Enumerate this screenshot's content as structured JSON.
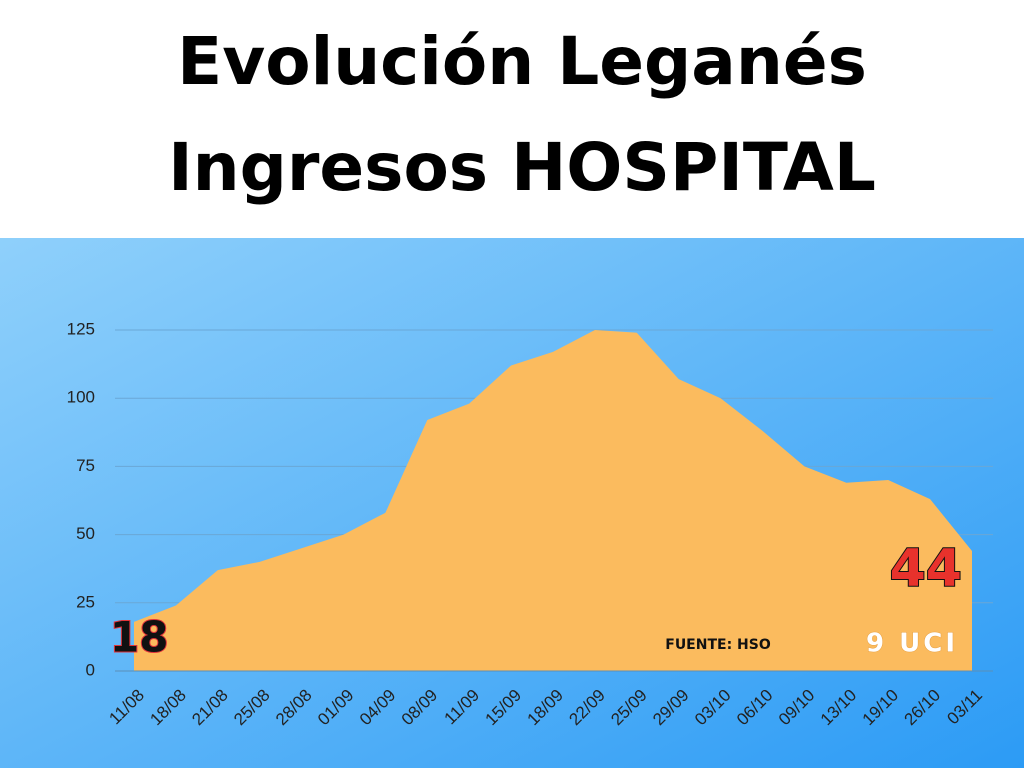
{
  "chart_data": {
    "type": "area",
    "title": [
      "Evolución Leganés",
      "Ingresos HOSPITAL"
    ],
    "categories": [
      "11/08",
      "18/08",
      "21/08",
      "25/08",
      "28/08",
      "01/09",
      "04/09",
      "08/09",
      "11/09",
      "15/09",
      "18/09",
      "22/09",
      "25/09",
      "29/09",
      "03/10",
      "06/10",
      "09/10",
      "13/10",
      "19/10",
      "26/10",
      "03/11"
    ],
    "values": [
      18,
      24,
      37,
      40,
      45,
      50,
      58,
      92,
      98,
      112,
      117,
      125,
      124,
      107,
      100,
      88,
      75,
      69,
      70,
      63,
      44
    ],
    "color": "#fbbb5e",
    "ylim": [
      0,
      125
    ],
    "yticks": [
      0,
      25,
      50,
      75,
      100,
      125
    ],
    "grid": true,
    "annotations": [
      "18",
      "44",
      "9 UCI",
      "FUENTE: HSO"
    ]
  }
}
